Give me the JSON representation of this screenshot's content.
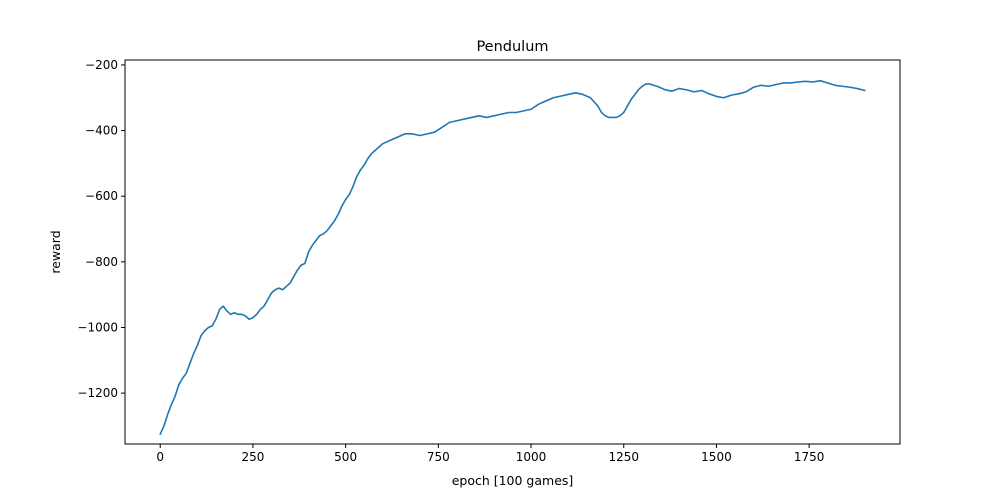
{
  "chart_data": {
    "type": "line",
    "title": "Pendulum",
    "xlabel": "epoch [100 games]",
    "ylabel": "reward",
    "xlim": [
      -95,
      1995
    ],
    "ylim": [
      -1355,
      -185
    ],
    "xticks": [
      0,
      250,
      500,
      750,
      1000,
      1250,
      1500,
      1750
    ],
    "xtick_labels": [
      "0",
      "250",
      "500",
      "750",
      "1000",
      "1250",
      "1500",
      "1750"
    ],
    "yticks": [
      -1200,
      -1000,
      -800,
      -600,
      -400,
      -200
    ],
    "ytick_labels": [
      "−1200",
      "−1000",
      "−800",
      "−600",
      "−400",
      "−200"
    ],
    "grid": false,
    "series": [
      {
        "color": "#1f77b4",
        "x": [
          0,
          10,
          20,
          30,
          40,
          50,
          60,
          70,
          80,
          90,
          100,
          110,
          120,
          130,
          140,
          150,
          160,
          170,
          180,
          190,
          200,
          210,
          220,
          230,
          240,
          250,
          260,
          270,
          280,
          290,
          300,
          310,
          320,
          330,
          340,
          350,
          360,
          370,
          380,
          390,
          400,
          410,
          420,
          430,
          440,
          450,
          460,
          470,
          480,
          490,
          500,
          510,
          520,
          530,
          540,
          550,
          560,
          570,
          580,
          590,
          600,
          620,
          640,
          660,
          680,
          700,
          720,
          740,
          760,
          780,
          800,
          820,
          840,
          860,
          880,
          900,
          920,
          940,
          960,
          980,
          1000,
          1020,
          1040,
          1060,
          1080,
          1100,
          1120,
          1140,
          1160,
          1180,
          1190,
          1200,
          1210,
          1220,
          1230,
          1240,
          1250,
          1260,
          1270,
          1280,
          1290,
          1300,
          1310,
          1320,
          1330,
          1340,
          1360,
          1380,
          1400,
          1420,
          1440,
          1460,
          1480,
          1500,
          1520,
          1540,
          1560,
          1580,
          1600,
          1620,
          1640,
          1660,
          1680,
          1700,
          1720,
          1740,
          1760,
          1780,
          1800,
          1820,
          1840,
          1860,
          1880,
          1900
        ],
        "y": [
          -1325,
          -1300,
          -1265,
          -1235,
          -1210,
          -1175,
          -1155,
          -1140,
          -1110,
          -1080,
          -1055,
          -1025,
          -1010,
          -1000,
          -995,
          -975,
          -945,
          -935,
          -950,
          -960,
          -955,
          -960,
          -960,
          -965,
          -975,
          -970,
          -960,
          -945,
          -935,
          -915,
          -895,
          -885,
          -880,
          -885,
          -875,
          -865,
          -845,
          -825,
          -810,
          -805,
          -770,
          -750,
          -735,
          -720,
          -715,
          -705,
          -690,
          -675,
          -655,
          -630,
          -610,
          -595,
          -570,
          -540,
          -520,
          -505,
          -485,
          -470,
          -460,
          -450,
          -440,
          -430,
          -420,
          -410,
          -410,
          -415,
          -410,
          -405,
          -390,
          -375,
          -370,
          -365,
          -360,
          -355,
          -360,
          -355,
          -350,
          -345,
          -345,
          -340,
          -335,
          -320,
          -310,
          -300,
          -295,
          -290,
          -285,
          -290,
          -300,
          -325,
          -345,
          -355,
          -360,
          -360,
          -360,
          -355,
          -345,
          -325,
          -305,
          -290,
          -275,
          -265,
          -258,
          -258,
          -262,
          -265,
          -275,
          -280,
          -272,
          -276,
          -282,
          -278,
          -288,
          -296,
          -300,
          -292,
          -288,
          -282,
          -268,
          -262,
          -265,
          -260,
          -255,
          -255,
          -252,
          -250,
          -252,
          -248,
          -255,
          -262,
          -265,
          -268,
          -272,
          -278
        ]
      }
    ]
  }
}
